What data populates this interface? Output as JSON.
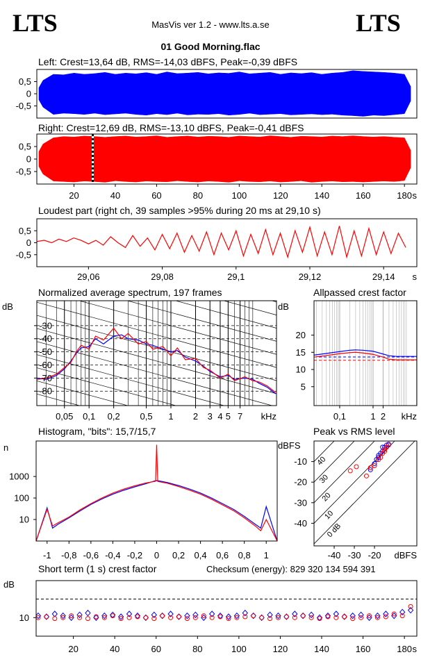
{
  "header": {
    "left_logo": "LTS",
    "right_logo": "LTS",
    "app": "MasVis ver 1.2 - www.lts.a.se",
    "file": "01 Good Morning.flac"
  },
  "chart_data": [
    {
      "type": "envelope",
      "title": "Left: Crest=13,64 dB, RMS=-14,03 dBFS, Peak=-0,39 dBFS",
      "color": "#0000ff",
      "x": [
        3,
        5,
        10,
        15,
        20,
        25,
        30,
        35,
        40,
        45,
        50,
        55,
        60,
        65,
        70,
        75,
        80,
        85,
        90,
        95,
        100,
        105,
        110,
        115,
        120,
        125,
        130,
        135,
        140,
        145,
        150,
        155,
        160,
        165,
        170,
        175,
        180,
        183
      ],
      "upper": [
        0.25,
        0.55,
        0.8,
        0.78,
        0.85,
        0.8,
        0.83,
        0.88,
        0.8,
        0.85,
        0.82,
        0.87,
        0.8,
        0.9,
        0.83,
        0.85,
        0.88,
        0.82,
        0.86,
        0.84,
        0.9,
        0.82,
        0.85,
        0.88,
        0.8,
        0.86,
        0.83,
        0.87,
        0.8,
        0.85,
        0.88,
        0.95,
        0.92,
        0.9,
        0.88,
        0.85,
        0.8,
        0.3
      ],
      "lower": [
        -0.25,
        -0.55,
        -0.85,
        -0.8,
        -0.82,
        -0.85,
        -0.8,
        -0.86,
        -0.83,
        -0.8,
        -0.85,
        -0.88,
        -0.82,
        -0.86,
        -0.8,
        -0.87,
        -0.84,
        -0.85,
        -0.82,
        -0.88,
        -0.85,
        -0.8,
        -0.86,
        -0.84,
        -0.82,
        -0.87,
        -0.85,
        -0.83,
        -0.86,
        -0.84,
        -0.88,
        -0.9,
        -0.93,
        -0.88,
        -0.9,
        -0.86,
        -0.82,
        -0.3
      ],
      "xlim": [
        2,
        186
      ],
      "ylim": [
        -1,
        1
      ],
      "yticks": [
        {
          "value": 0.5,
          "label": "0,5"
        },
        0,
        {
          "value": -0.5,
          "label": "-0,5"
        }
      ]
    },
    {
      "type": "envelope",
      "title": "Right: Crest=12,69 dB, RMS=-13,10 dBFS, Peak=-0,41 dBFS",
      "color": "#ff0000",
      "x": [
        3,
        5,
        10,
        15,
        20,
        25,
        30,
        35,
        40,
        45,
        50,
        55,
        60,
        65,
        70,
        75,
        80,
        85,
        90,
        95,
        100,
        105,
        110,
        115,
        120,
        125,
        130,
        135,
        140,
        145,
        150,
        155,
        160,
        165,
        170,
        175,
        180,
        183
      ],
      "upper": [
        0.3,
        0.6,
        0.85,
        0.9,
        0.88,
        0.92,
        0.9,
        0.87,
        0.9,
        0.92,
        0.88,
        0.9,
        0.93,
        0.87,
        0.9,
        0.92,
        0.88,
        0.91,
        0.9,
        0.87,
        0.92,
        0.9,
        0.88,
        0.93,
        0.9,
        0.87,
        0.91,
        0.9,
        0.88,
        0.92,
        0.9,
        0.93,
        0.9,
        0.88,
        0.9,
        0.87,
        0.85,
        0.35
      ],
      "lower": [
        -0.3,
        -0.6,
        -0.88,
        -0.9,
        -0.92,
        -0.88,
        -0.9,
        -0.93,
        -0.87,
        -0.9,
        -0.92,
        -0.88,
        -0.9,
        -0.91,
        -0.87,
        -0.9,
        -0.92,
        -0.88,
        -0.9,
        -0.93,
        -0.87,
        -0.9,
        -0.91,
        -0.88,
        -0.92,
        -0.9,
        -0.87,
        -0.93,
        -0.9,
        -0.88,
        -0.91,
        -0.9,
        -0.92,
        -0.9,
        -0.88,
        -0.9,
        -0.86,
        -0.35
      ],
      "marker": 29.1,
      "xlim": [
        2,
        186
      ],
      "ylim": [
        -1,
        1
      ],
      "yticks": [
        {
          "value": 0.5,
          "label": "0,5"
        },
        0,
        {
          "value": -0.5,
          "label": "-0,5"
        }
      ],
      "xticks": [
        20,
        40,
        60,
        80,
        100,
        120,
        140,
        160,
        180
      ],
      "xlabel": "s"
    },
    {
      "type": "line",
      "title": "Loudest part (right ch, 39 samples >95% during 20 ms at 29,10 s)",
      "x": [
        29.046,
        29.048,
        29.05,
        29.052,
        29.054,
        29.056,
        29.058,
        29.06,
        29.062,
        29.064,
        29.066,
        29.068,
        29.07,
        29.072,
        29.074,
        29.076,
        29.078,
        29.08,
        29.082,
        29.084,
        29.086,
        29.088,
        29.09,
        29.092,
        29.094,
        29.096,
        29.098,
        29.1,
        29.102,
        29.104,
        29.106,
        29.108,
        29.11,
        29.112,
        29.114,
        29.116,
        29.118,
        29.12,
        29.122,
        29.124,
        29.126,
        29.128,
        29.13,
        29.132,
        29.134,
        29.136,
        29.138,
        29.14,
        29.142,
        29.144,
        29.146
      ],
      "series": [
        {
          "color": "#ff0000",
          "values": [
            0.05,
            0.1,
            0.0,
            0.15,
            0.05,
            0.2,
            0.1,
            -0.05,
            0.1,
            -0.1,
            0.25,
            0.0,
            -0.2,
            0.3,
            -0.15,
            0.2,
            -0.3,
            0.35,
            -0.25,
            0.4,
            -0.4,
            0.3,
            -0.35,
            0.45,
            -0.5,
            0.4,
            -0.3,
            0.5,
            -0.55,
            0.35,
            -0.45,
            0.55,
            -0.5,
            0.4,
            -0.6,
            0.5,
            -0.4,
            0.65,
            -0.55,
            0.45,
            -0.5,
            0.7,
            -0.6,
            0.5,
            -0.55,
            0.6,
            -0.5,
            0.45,
            -0.45,
            0.4,
            -0.2
          ]
        }
      ],
      "xlim": [
        29.046,
        29.149
      ],
      "ylim": [
        -1,
        1
      ],
      "yticks": [
        {
          "value": 0.5,
          "label": "0,5"
        },
        0,
        {
          "value": -0.5,
          "label": "-0,5"
        }
      ],
      "xticks": [
        {
          "value": 29.06,
          "label": "29,06"
        },
        {
          "value": 29.08,
          "label": "29,08"
        },
        {
          "value": 29.1,
          "label": "29,1"
        },
        {
          "value": 29.12,
          "label": "29,12"
        },
        {
          "value": 29.14,
          "label": "29,14"
        }
      ],
      "xlabel": "s"
    },
    {
      "type": "line",
      "title": "Normalized average spectrum, 197 frames",
      "ylabel": "dB",
      "xlabel": "kHz",
      "xlog": true,
      "grid": "both",
      "grid_color": "#000000",
      "minor_grid": true,
      "diagonal_grid": true,
      "x": [
        0.023,
        0.03,
        0.04,
        0.05,
        0.06,
        0.07,
        0.08,
        0.1,
        0.12,
        0.15,
        0.2,
        0.25,
        0.3,
        0.4,
        0.5,
        0.6,
        0.8,
        1,
        1.2,
        1.5,
        2,
        2.5,
        3,
        4,
        5,
        6,
        8,
        10,
        12,
        15,
        19
      ],
      "series": [
        {
          "color": "#0000ff",
          "values": [
            -70,
            -71,
            -68,
            -63,
            -57,
            -51,
            -47,
            -46,
            -40,
            -44,
            -38,
            -37,
            -40,
            -41,
            -44,
            -45,
            -48,
            -50,
            -49,
            -54,
            -57,
            -61,
            -65,
            -69,
            -68,
            -71,
            -70,
            -71,
            -74,
            -77,
            -82
          ]
        },
        {
          "color": "#ff0000",
          "values": [
            -71,
            -70,
            -67,
            -62,
            -58,
            -50,
            -45,
            -48,
            -38,
            -41,
            -32,
            -40,
            -36,
            -44,
            -42,
            -48,
            -46,
            -53,
            -47,
            -56,
            -55,
            -62,
            -64,
            -70,
            -67,
            -72,
            -69,
            -72,
            -73,
            -76,
            -81
          ]
        }
      ],
      "xlim": [
        0.023,
        19.5
      ],
      "ylim": [
        -91,
        -11
      ],
      "yticks": [
        -30,
        -40,
        -50,
        -60,
        -70,
        -80
      ],
      "xticks": [
        {
          "value": 0.05,
          "label": "0,05"
        },
        {
          "value": 0.1,
          "label": "0,1"
        },
        {
          "value": 0.2,
          "label": "0,2"
        },
        {
          "value": 0.5,
          "label": "0,5"
        },
        1,
        2,
        3,
        4,
        5,
        7
      ]
    },
    {
      "type": "line",
      "title": "Allpassed crest factor",
      "ylabel": "dB",
      "xlabel": "kHz",
      "xlog": true,
      "grid": "x",
      "grid_color": "#b0b0b0",
      "minor_grid": true,
      "x": [
        0.017,
        0.03,
        0.05,
        0.1,
        0.2,
        0.3,
        0.5,
        1,
        2,
        3,
        5,
        10,
        20
      ],
      "series": [
        {
          "color": "#0000ff",
          "values": [
            14.2,
            14.5,
            14.8,
            15.2,
            15.6,
            15.7,
            15.6,
            15.3,
            14.5,
            14,
            13.8,
            13.8,
            13.8
          ]
        },
        {
          "color": "#ff0000",
          "values": [
            13.6,
            13.9,
            14.2,
            14.6,
            14.9,
            15,
            14.8,
            14.4,
            13.6,
            13,
            12.8,
            12.8,
            12.8
          ]
        }
      ],
      "reference_lines": [
        {
          "color": "#0000ff",
          "value": 13.64
        },
        {
          "color": "#ff0000",
          "value": 12.69
        }
      ],
      "xlim": [
        0.017,
        20.5
      ],
      "ylim": [
        -0.5,
        30
      ],
      "yticks": [
        5,
        10,
        15,
        20
      ],
      "xticks": [
        {
          "value": 0.1,
          "label": "0,1"
        },
        1,
        2
      ]
    },
    {
      "type": "line",
      "title": "Histogram, \"bits\": 15,7/15,7",
      "ylabel": "n",
      "ylog": true,
      "x": [
        -1.1,
        -1,
        -0.95,
        -0.9,
        -0.8,
        -0.7,
        -0.6,
        -0.5,
        -0.4,
        -0.3,
        -0.2,
        -0.1,
        -0.01,
        0,
        0.01,
        0.1,
        0.2,
        0.3,
        0.4,
        0.5,
        0.6,
        0.7,
        0.8,
        0.9,
        0.95,
        1,
        1.1
      ],
      "series": [
        {
          "color": "#0000ff",
          "values": [
            1,
            35,
            4,
            6,
            12,
            25,
            50,
            90,
            150,
            230,
            330,
            460,
            640,
            650,
            640,
            520,
            380,
            260,
            170,
            100,
            55,
            30,
            14,
            6,
            4,
            40,
            1
          ]
        },
        {
          "color": "#ff0000",
          "values": [
            1,
            30,
            5,
            7,
            13,
            28,
            55,
            100,
            170,
            260,
            370,
            500,
            600,
            30000,
            590,
            480,
            340,
            230,
            150,
            88,
            48,
            26,
            12,
            5,
            3,
            10,
            1
          ]
        }
      ],
      "xlim": [
        -1.1,
        1.1
      ],
      "ylim": [
        1,
        44700
      ],
      "yticks": [
        10,
        100,
        1000
      ],
      "xticks": [
        -1,
        {
          "value": -0.8,
          "label": "-0,8"
        },
        {
          "value": -0.6,
          "label": "-0,6"
        },
        {
          "value": -0.4,
          "label": "-0,4"
        },
        {
          "value": -0.2,
          "label": "-0,2"
        },
        0,
        {
          "value": 0.2,
          "label": "0,2"
        },
        {
          "value": 0.4,
          "label": "0,4"
        },
        {
          "value": 0.6,
          "label": "0,6"
        },
        {
          "value": 0.8,
          "label": "0,8"
        },
        1
      ]
    },
    {
      "type": "scatter",
      "title": "Peak vs RMS level",
      "ylabel": "dBFS",
      "xlabel": "dBFS",
      "crest_lines": [
        {
          "value": 40,
          "label": "40"
        },
        {
          "value": 30,
          "label": "30"
        },
        {
          "value": 20,
          "label": "20"
        },
        {
          "value": 10,
          "label": "10"
        },
        {
          "value": 0,
          "label": "0 dB"
        }
      ],
      "series": [
        {
          "color": "#0000ff",
          "marker": "circle",
          "x": [
            -22,
            -20,
            -19,
            -18,
            -17,
            -16,
            -15,
            -15,
            -14,
            -16,
            -18,
            -13
          ],
          "values": [
            -14,
            -11,
            -9,
            -8,
            -6,
            -5,
            -4,
            -3,
            -2,
            -3,
            -7,
            -1.5
          ]
        },
        {
          "color": "#ff0000",
          "marker": "circle",
          "x": [
            -32,
            -29,
            -24,
            -22,
            -20,
            -18,
            -17,
            -16,
            -15,
            -14,
            -13,
            -15
          ],
          "values": [
            -14.5,
            -12.5,
            -17,
            -13,
            -12,
            -9,
            -8,
            -6,
            -5,
            -3,
            -2,
            -4
          ]
        }
      ],
      "xlim": [
        -50,
        1
      ],
      "ylim": [
        -51,
        0
      ],
      "yticks": [
        -10,
        -20,
        -30,
        -40
      ],
      "xticks": [
        -40,
        -30,
        -20
      ]
    },
    {
      "type": "scatter",
      "title": "Short term (1 s) crest factor",
      "annotation": "Checksum (energy):  829 320 134 594 391",
      "ylabel": "dB",
      "xlabel": "s",
      "x": [
        3,
        7,
        11,
        15,
        19,
        23,
        27,
        31,
        35,
        39,
        43,
        47,
        51,
        55,
        59,
        63,
        67,
        71,
        75,
        79,
        83,
        87,
        91,
        95,
        99,
        103,
        107,
        111,
        115,
        119,
        123,
        127,
        131,
        135,
        139,
        143,
        147,
        151,
        155,
        159,
        163,
        167,
        171,
        175,
        179,
        183
      ],
      "series": [
        {
          "color": "#0000ff",
          "marker": "diamond",
          "values": [
            11,
            10.5,
            12,
            11,
            10,
            11.5,
            12.5,
            10,
            11,
            11.5,
            10.5,
            12,
            11,
            10,
            11.5,
            11,
            12,
            10.5,
            11,
            11.5,
            10,
            12,
            11,
            10.5,
            11,
            12.5,
            11,
            10,
            11.5,
            11,
            10.5,
            12,
            11,
            11.5,
            10,
            11,
            12,
            10.5,
            11,
            11.5,
            10,
            11,
            12,
            11,
            13,
            14
          ]
        },
        {
          "color": "#ff0000",
          "marker": "circle",
          "values": [
            10,
            10.5,
            9.5,
            10,
            11,
            10,
            9.5,
            10.5,
            10,
            11,
            9.5,
            10,
            10.5,
            10,
            9.5,
            11,
            10,
            10.5,
            9.5,
            10,
            11,
            10,
            10.5,
            9.5,
            10,
            10.5,
            11,
            10,
            9.5,
            10,
            10.5,
            10,
            11,
            10,
            9.5,
            10.5,
            10,
            10.5,
            9.5,
            10,
            11,
            10,
            10.5,
            12,
            11,
            16
          ]
        }
      ],
      "reference_lines": [
        {
          "color": "#000000",
          "value": 20
        }
      ],
      "xlim": [
        2,
        186
      ],
      "ylim": [
        0,
        30
      ],
      "yticks": [
        10
      ],
      "xticks": [
        20,
        40,
        60,
        80,
        100,
        120,
        140,
        160,
        180
      ]
    }
  ]
}
